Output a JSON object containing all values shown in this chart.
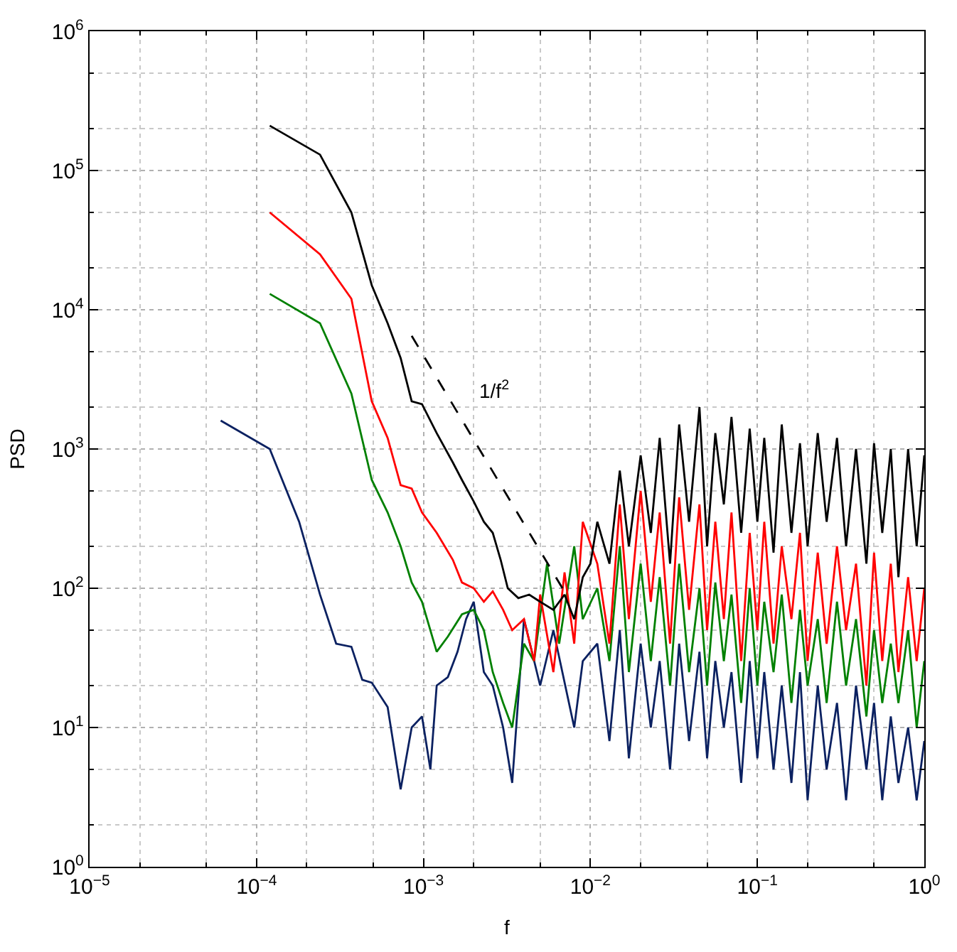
{
  "chart_data": {
    "type": "line",
    "xlabel": "f",
    "ylabel": "PSD",
    "log": "xy",
    "grid": true,
    "marker": "none",
    "xlim": [
      1e-05,
      1
    ],
    "ylim": [
      1,
      1000000
    ],
    "xticks": [
      {
        "value": 1e-05,
        "label": "10$^{−5}$"
      },
      {
        "value": 0.0001,
        "label": "10$^{−4}$"
      },
      {
        "value": 0.001,
        "label": "10$^{−3}$"
      },
      {
        "value": 0.01,
        "label": "10$^{−2}$"
      },
      {
        "value": 0.1,
        "label": "10$^{−1}$"
      },
      {
        "value": 1,
        "label": "10$^{0}$"
      }
    ],
    "yticks": [
      {
        "value": 1,
        "label": "10$^{0}$"
      },
      {
        "value": 10,
        "label": "10$^{1}$"
      },
      {
        "value": 100,
        "label": "10$^{2}$"
      },
      {
        "value": 1000,
        "label": "10$^{3}$"
      },
      {
        "value": 10000,
        "label": "10$^{4}$"
      },
      {
        "value": 100000,
        "label": "10$^{5}$"
      },
      {
        "value": 1000000,
        "label": "10$^{6}$"
      }
    ],
    "annotations": [
      "1/f$^{2}$"
    ],
    "series": [
      {
        "color": "#0b2161",
        "x": [
          6.1e-05,
          0.00012,
          0.00018,
          0.00024,
          0.0003,
          0.00037,
          0.00043,
          0.00049,
          0.00061,
          0.00073,
          0.00085,
          0.00098,
          0.0011,
          0.0012,
          0.0014,
          0.0016,
          0.0018,
          0.002,
          0.0023,
          0.0026,
          0.003,
          0.0034,
          0.004,
          0.005,
          0.006,
          0.008,
          0.009,
          0.011,
          0.013,
          0.015,
          0.017,
          0.02,
          0.023,
          0.026,
          0.03,
          0.034,
          0.039,
          0.045,
          0.05,
          0.056,
          0.063,
          0.07,
          0.08,
          0.09,
          0.1,
          0.11,
          0.125,
          0.14,
          0.16,
          0.18,
          0.2,
          0.23,
          0.26,
          0.3,
          0.34,
          0.39,
          0.45,
          0.5,
          0.56,
          0.63,
          0.7,
          0.8,
          0.9,
          1.0
        ],
        "values": [
          1600,
          1000,
          300,
          90,
          40,
          38,
          22,
          21,
          14,
          3.6,
          10,
          12,
          5,
          20,
          23,
          35,
          60,
          80,
          25,
          20,
          10,
          4,
          60,
          20,
          50,
          10,
          30,
          40,
          8,
          50,
          6,
          40,
          10,
          30,
          5,
          40,
          8,
          35,
          6,
          30,
          10,
          25,
          4,
          30,
          6,
          25,
          5,
          20,
          4,
          25,
          3,
          20,
          5,
          15,
          3,
          20,
          5,
          15,
          3,
          12,
          4,
          10,
          3,
          8
        ]
      },
      {
        "color": "#008000",
        "x": [
          0.00012,
          0.00024,
          0.00037,
          0.00049,
          0.00061,
          0.00073,
          0.00085,
          0.00098,
          0.0012,
          0.0014,
          0.0017,
          0.002,
          0.0023,
          0.0026,
          0.003,
          0.0034,
          0.004,
          0.0046,
          0.0055,
          0.0065,
          0.008,
          0.009,
          0.011,
          0.013,
          0.015,
          0.017,
          0.02,
          0.023,
          0.026,
          0.03,
          0.034,
          0.039,
          0.045,
          0.05,
          0.056,
          0.063,
          0.07,
          0.08,
          0.09,
          0.1,
          0.11,
          0.125,
          0.14,
          0.16,
          0.18,
          0.2,
          0.23,
          0.26,
          0.3,
          0.34,
          0.39,
          0.45,
          0.5,
          0.56,
          0.63,
          0.7,
          0.8,
          0.9,
          1.0
        ],
        "values": [
          13000,
          8000,
          2500,
          600,
          350,
          200,
          110,
          80,
          35,
          45,
          65,
          70,
          50,
          25,
          15,
          10,
          40,
          30,
          150,
          40,
          200,
          60,
          100,
          30,
          200,
          25,
          150,
          30,
          120,
          20,
          150,
          25,
          100,
          20,
          110,
          30,
          90,
          15,
          100,
          20,
          80,
          25,
          90,
          15,
          70,
          20,
          60,
          15,
          80,
          20,
          60,
          12,
          50,
          15,
          40,
          15,
          50,
          10,
          30
        ]
      },
      {
        "color": "#ff0000",
        "x": [
          0.00012,
          0.00024,
          0.00037,
          0.00049,
          0.00061,
          0.00073,
          0.00085,
          0.00098,
          0.0012,
          0.0015,
          0.0017,
          0.002,
          0.0023,
          0.0026,
          0.003,
          0.0034,
          0.004,
          0.0046,
          0.005,
          0.006,
          0.007,
          0.008,
          0.009,
          0.011,
          0.013,
          0.015,
          0.017,
          0.02,
          0.023,
          0.026,
          0.03,
          0.034,
          0.039,
          0.045,
          0.05,
          0.056,
          0.063,
          0.07,
          0.08,
          0.09,
          0.1,
          0.11,
          0.125,
          0.14,
          0.16,
          0.18,
          0.2,
          0.23,
          0.26,
          0.3,
          0.34,
          0.39,
          0.45,
          0.5,
          0.56,
          0.63,
          0.7,
          0.8,
          0.9,
          1.0
        ],
        "values": [
          50000,
          25000,
          12000,
          2200,
          1200,
          550,
          520,
          350,
          250,
          160,
          110,
          100,
          80,
          95,
          70,
          50,
          60,
          30,
          90,
          25,
          130,
          40,
          300,
          150,
          40,
          400,
          60,
          500,
          80,
          350,
          40,
          450,
          70,
          400,
          50,
          300,
          60,
          350,
          30,
          250,
          50,
          300,
          40,
          200,
          60,
          250,
          30,
          180,
          40,
          200,
          50,
          150,
          20,
          180,
          30,
          150,
          25,
          120,
          30,
          100
        ]
      },
      {
        "color": "#000000",
        "x": [
          0.00012,
          0.00024,
          0.00037,
          0.00049,
          0.00061,
          0.00073,
          0.00085,
          0.00098,
          0.0012,
          0.0015,
          0.0017,
          0.002,
          0.0023,
          0.0026,
          0.0029,
          0.0032,
          0.0037,
          0.0043,
          0.005,
          0.006,
          0.007,
          0.008,
          0.009,
          0.01,
          0.011,
          0.013,
          0.015,
          0.017,
          0.02,
          0.023,
          0.026,
          0.03,
          0.034,
          0.039,
          0.045,
          0.05,
          0.056,
          0.063,
          0.07,
          0.08,
          0.09,
          0.1,
          0.11,
          0.125,
          0.14,
          0.16,
          0.18,
          0.2,
          0.23,
          0.26,
          0.3,
          0.34,
          0.39,
          0.45,
          0.5,
          0.56,
          0.63,
          0.7,
          0.8,
          0.9,
          1.0
        ],
        "values": [
          210000,
          130000,
          50000,
          15000,
          8000,
          4500,
          2200,
          2100,
          1300,
          800,
          600,
          420,
          300,
          250,
          160,
          100,
          85,
          90,
          80,
          70,
          90,
          60,
          120,
          150,
          300,
          150,
          700,
          200,
          900,
          250,
          1200,
          150,
          1500,
          300,
          2000,
          200,
          1300,
          400,
          1700,
          250,
          1400,
          300,
          1200,
          180,
          1500,
          250,
          1100,
          200,
          1300,
          300,
          1200,
          200,
          1000,
          150,
          1100,
          250,
          1000,
          120,
          1000,
          200,
          900
        ]
      },
      {
        "color": "#000000",
        "line_style": "dashed",
        "x": [
          0.00085,
          0.0068
        ],
        "values": [
          6500,
          100
        ]
      }
    ]
  }
}
